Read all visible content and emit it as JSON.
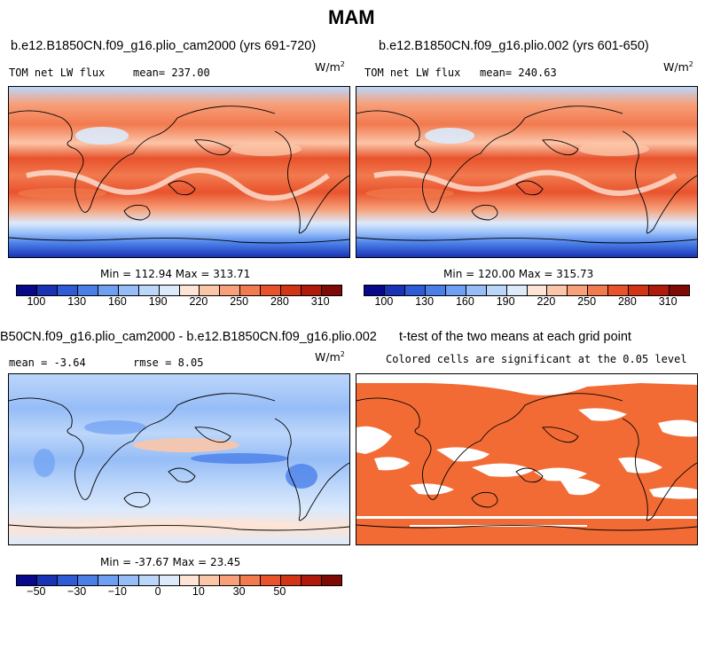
{
  "title": "MAM",
  "panels": {
    "a": {
      "case": "b.e12.B1850CN.f09_g16.plio_cam2000 (yrs 691-720)",
      "variable": "TOM net LW flux",
      "mean": "mean= 237.00",
      "units": "W/m",
      "units_exp": "2",
      "minmax": "Min = 112.94 Max = 313.71"
    },
    "b": {
      "case": "b.e12.B1850CN.f09_g16.plio.002 (yrs 601-650)",
      "variable": "TOM net LW flux",
      "mean": "mean= 240.63",
      "units": "W/m",
      "units_exp": "2",
      "minmax": "Min = 120.00 Max = 315.73"
    },
    "diff": {
      "case": "B50CN.f09_g16.plio_cam2000 - b.e12.B1850CN.f09_g16.plio.002",
      "mean": "mean =  -3.64",
      "rmse": "rmse =   8.05",
      "units": "W/m",
      "units_exp": "2",
      "minmax": "Min = -37.67 Max =  23.45"
    },
    "ttest": {
      "title": "t-test of the two means at each grid point",
      "subtitle": "Colored cells are significant at the 0.05 level",
      "color": "#f26b35"
    }
  },
  "colorbar_abs": {
    "colors": [
      "#08088a",
      "#1a33b5",
      "#2f5bd6",
      "#4a7fe8",
      "#6e9ff2",
      "#96bdf7",
      "#bcd6fa",
      "#dceafc",
      "#fde4d6",
      "#fbc5a8",
      "#f7a07a",
      "#f27a4f",
      "#e8532c",
      "#d23516",
      "#b01a0b",
      "#7e0a05"
    ],
    "labels": [
      "100",
      "130",
      "160",
      "190",
      "220",
      "250",
      "280",
      "310"
    ]
  },
  "colorbar_diff": {
    "colors": [
      "#08088a",
      "#1a33b5",
      "#2f5bd6",
      "#4a7fe8",
      "#6e9ff2",
      "#96bdf7",
      "#bcd6fa",
      "#dceafc",
      "#fde4d6",
      "#fbc5a8",
      "#f7a07a",
      "#f27a4f",
      "#e8532c",
      "#d23516",
      "#b01a0b",
      "#7e0a05"
    ],
    "labels": [
      "−50",
      "−30",
      "−10",
      "0",
      "10",
      "30",
      "50"
    ]
  }
}
